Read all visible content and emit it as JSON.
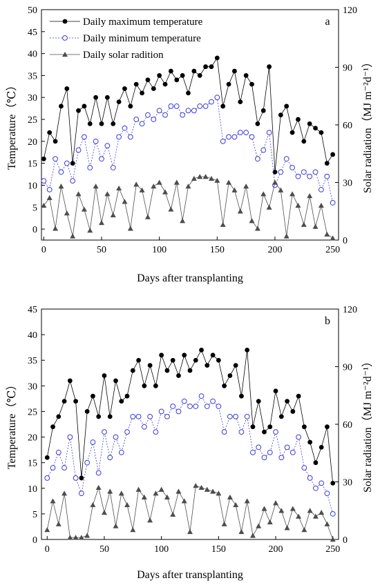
{
  "chart_data": [
    {
      "type": "line",
      "panel_label": "a",
      "xlabel": "Days after transplanting",
      "ylabel": "Temperature（℃）",
      "y2label": "Solar radiation（MJ m⁻²d⁻¹）",
      "xlim": [
        -2,
        255
      ],
      "ylim": [
        -2.5,
        50
      ],
      "y2lim": [
        0,
        120
      ],
      "xticks": [
        0,
        50,
        100,
        150,
        200,
        250
      ],
      "yticks": [
        0,
        5,
        10,
        15,
        20,
        25,
        30,
        35,
        40,
        45,
        50
      ],
      "y2ticks": [
        0,
        30,
        60,
        90,
        120
      ],
      "legend_position": "top-left",
      "legend": [
        "Daily maximum temperature",
        "Daily minimum temperature",
        "Daily solar radition"
      ],
      "series": [
        {
          "name": "Daily maximum temperature",
          "axis": "left",
          "marker": "filled-circle",
          "color": "#000000",
          "x": [
            0,
            5,
            10,
            15,
            20,
            25,
            30,
            35,
            40,
            45,
            50,
            55,
            60,
            65,
            70,
            75,
            80,
            85,
            90,
            95,
            100,
            105,
            110,
            115,
            120,
            125,
            130,
            135,
            140,
            145,
            150,
            155,
            160,
            165,
            170,
            175,
            180,
            185,
            190,
            195,
            200,
            205,
            210,
            215,
            220,
            225,
            230,
            235,
            240,
            245,
            250
          ],
          "y": [
            16,
            22,
            20,
            28,
            32,
            15,
            27,
            28,
            24,
            30,
            24,
            30,
            24,
            29,
            32,
            28,
            33,
            31,
            34,
            32,
            35,
            33,
            36,
            34,
            35,
            31,
            36,
            35,
            37,
            37,
            39,
            28,
            33,
            36,
            29,
            35,
            33,
            24,
            27,
            37,
            13,
            26,
            28,
            22,
            25,
            20,
            24,
            23,
            22,
            15,
            17
          ]
        },
        {
          "name": "Daily minimum temperature",
          "axis": "left",
          "marker": "open-circle",
          "color": "#3a3ad8",
          "x": [
            0,
            5,
            10,
            15,
            20,
            25,
            30,
            35,
            40,
            45,
            50,
            55,
            60,
            65,
            70,
            75,
            80,
            85,
            90,
            95,
            100,
            105,
            110,
            115,
            120,
            125,
            130,
            135,
            140,
            145,
            150,
            155,
            160,
            165,
            170,
            175,
            180,
            185,
            190,
            195,
            200,
            205,
            210,
            215,
            220,
            225,
            230,
            235,
            240,
            245,
            250
          ],
          "y": [
            11,
            9,
            16,
            13,
            15,
            11,
            18,
            21,
            14,
            20,
            16,
            19,
            14,
            21,
            23,
            21,
            25,
            24,
            26,
            25,
            27,
            26,
            28,
            28,
            26,
            27,
            27,
            28,
            28,
            29,
            30,
            20,
            21,
            21,
            22,
            22,
            21,
            16,
            18,
            22,
            10,
            13,
            16,
            14,
            12,
            13,
            12,
            13,
            9,
            12,
            6
          ]
        },
        {
          "name": "Daily solar radition",
          "axis": "right",
          "marker": "filled-triangle",
          "color": "#4d4d4d",
          "x": [
            0,
            5,
            10,
            15,
            20,
            25,
            30,
            35,
            40,
            45,
            50,
            55,
            60,
            65,
            70,
            75,
            80,
            85,
            90,
            95,
            100,
            105,
            110,
            115,
            120,
            125,
            130,
            135,
            140,
            145,
            150,
            155,
            160,
            165,
            170,
            175,
            180,
            185,
            190,
            195,
            200,
            205,
            210,
            215,
            220,
            225,
            230,
            235,
            240,
            245,
            250
          ],
          "y": [
            18,
            22,
            6,
            28,
            14,
            2,
            24,
            16,
            5,
            28,
            9,
            24,
            13,
            27,
            20,
            6,
            29,
            26,
            12,
            28,
            30,
            25,
            16,
            30,
            10,
            28,
            32,
            33,
            33,
            32,
            31,
            8,
            30,
            26,
            15,
            28,
            10,
            6,
            24,
            17,
            30,
            26,
            2,
            24,
            18,
            8,
            23,
            7,
            18,
            3,
            1
          ]
        }
      ]
    },
    {
      "type": "line",
      "panel_label": "b",
      "xlabel": "Days after transplanting",
      "ylabel": "Temperature（℃）",
      "y2label": "Solar radiation（MJ m⁻²d⁻¹）",
      "xlim": [
        -5,
        255
      ],
      "ylim": [
        0,
        45
      ],
      "y2lim": [
        0,
        120
      ],
      "xticks": [
        0,
        50,
        100,
        150,
        200,
        250
      ],
      "yticks": [
        0,
        5,
        10,
        15,
        20,
        25,
        30,
        35,
        40,
        45
      ],
      "y2ticks": [
        0,
        30,
        60,
        90,
        120
      ],
      "series": [
        {
          "name": "Daily maximum temperature",
          "axis": "left",
          "marker": "filled-circle",
          "color": "#000000",
          "x": [
            0,
            5,
            10,
            15,
            20,
            25,
            30,
            35,
            40,
            45,
            50,
            55,
            60,
            65,
            70,
            75,
            80,
            85,
            90,
            95,
            100,
            105,
            110,
            115,
            120,
            125,
            130,
            135,
            140,
            145,
            150,
            155,
            160,
            165,
            170,
            175,
            180,
            185,
            190,
            195,
            200,
            205,
            210,
            215,
            220,
            225,
            230,
            235,
            240,
            245,
            250
          ],
          "y": [
            16,
            22,
            24,
            27,
            31,
            27,
            12,
            25,
            28,
            24,
            32,
            24,
            31,
            27,
            28,
            33,
            35,
            30,
            34,
            30,
            36,
            33,
            35,
            32,
            36,
            33,
            35,
            37,
            34,
            36,
            35,
            30,
            32,
            34,
            28,
            37,
            22,
            27,
            21,
            22,
            29,
            24,
            27,
            25,
            28,
            22,
            19,
            15,
            18,
            22,
            11
          ]
        },
        {
          "name": "Daily minimum temperature",
          "axis": "left",
          "marker": "open-circle",
          "color": "#3a3ad8",
          "x": [
            0,
            5,
            10,
            15,
            20,
            25,
            30,
            35,
            40,
            45,
            50,
            55,
            60,
            65,
            70,
            75,
            80,
            85,
            90,
            95,
            100,
            105,
            110,
            115,
            120,
            125,
            130,
            135,
            140,
            145,
            150,
            155,
            160,
            165,
            170,
            175,
            180,
            185,
            190,
            195,
            200,
            205,
            210,
            215,
            220,
            225,
            230,
            235,
            240,
            245,
            250
          ],
          "y": [
            12,
            14,
            17,
            14,
            20,
            12,
            9,
            15,
            19,
            13,
            21,
            16,
            20,
            17,
            21,
            24,
            24,
            22,
            24,
            21,
            25,
            24,
            26,
            25,
            27,
            26,
            26,
            28,
            26,
            27,
            26,
            21,
            24,
            24,
            21,
            24,
            17,
            18,
            16,
            17,
            21,
            16,
            18,
            17,
            20,
            14,
            12,
            10,
            11,
            9,
            5
          ]
        },
        {
          "name": "Daily solar radition",
          "axis": "right",
          "marker": "filled-triangle",
          "color": "#4d4d4d",
          "x": [
            0,
            5,
            10,
            15,
            20,
            25,
            30,
            35,
            40,
            45,
            50,
            55,
            60,
            65,
            70,
            75,
            80,
            85,
            90,
            95,
            100,
            105,
            110,
            115,
            120,
            125,
            130,
            135,
            140,
            145,
            150,
            155,
            160,
            165,
            170,
            175,
            180,
            185,
            190,
            195,
            200,
            205,
            210,
            215,
            220,
            225,
            230,
            235,
            240,
            245,
            250
          ],
          "y": [
            5,
            20,
            8,
            24,
            1,
            1,
            1,
            2,
            18,
            27,
            14,
            25,
            7,
            24,
            18,
            5,
            26,
            22,
            10,
            24,
            26,
            22,
            13,
            25,
            20,
            4,
            28,
            27,
            26,
            25,
            24,
            8,
            22,
            18,
            4,
            20,
            2,
            7,
            16,
            9,
            19,
            15,
            6,
            16,
            12,
            5,
            15,
            12,
            14,
            8,
            0
          ]
        }
      ]
    }
  ]
}
